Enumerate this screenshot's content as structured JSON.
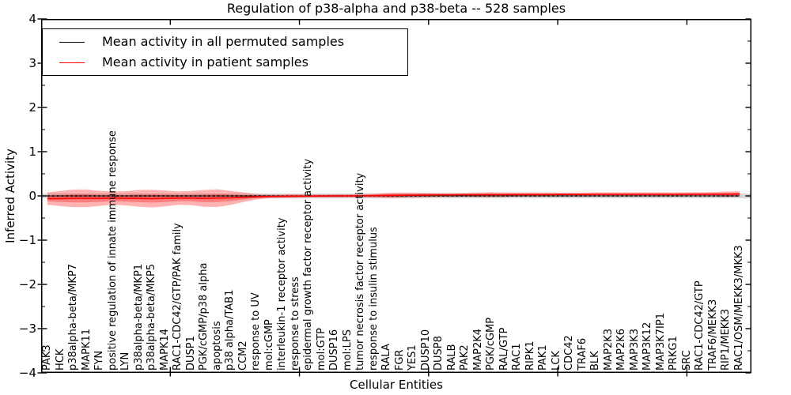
{
  "title": "Regulation of p38-alpha and p38-beta -- 528 samples",
  "legend": {
    "entries": [
      {
        "label": "Mean activity in all permuted samples",
        "color": "#000000"
      },
      {
        "label": "Mean activity in patient samples",
        "color": "#ff0000"
      }
    ]
  },
  "colors": {
    "patient_line": "#ff0000",
    "patient_band_fill": "rgba(255,0,0,0.30)",
    "permuted_band_fill": "rgba(110,110,110,0.28)",
    "axis": "#000000"
  },
  "chart_data": {
    "type": "area",
    "title": "Regulation of p38-alpha and p38-beta -- 528 samples",
    "xlabel": "Cellular Entities",
    "ylabel": "Inferred Activity",
    "ylim": [
      -4,
      4
    ],
    "y_major_ticks": [
      4,
      3,
      2,
      1,
      0,
      -1,
      -2,
      -3,
      -4
    ],
    "y_tick_labels": [
      "4",
      "3",
      "2",
      "1",
      "0",
      "−1",
      "−2",
      "−3",
      "−4"
    ],
    "y_minor_tick_step": 0.5,
    "xlim_data": [
      0,
      55
    ],
    "x_major_ticks_data": [
      10,
      20,
      30,
      40,
      50
    ],
    "grid": false,
    "legend_position": "upper left",
    "categories": [
      "PAK3",
      "HCK",
      "p38alpha-beta/MKP7",
      "MAPK11",
      "FYN",
      "positive regulation of innate immune response",
      "LYN",
      "p38alpha-beta/MKP1",
      "p38alpha-beta/MKP5",
      "MAPK14",
      "RAC1-CDC42/GTP/PAK family",
      "DUSP1",
      "PGK/cGMP/p38 alpha",
      "apoptosis",
      "p38 alpha/TAB1",
      "CCM2",
      "response to UV",
      "mol:cGMP",
      "interleukin-1 receptor activity",
      "response to stress",
      "epidermal growth factor receptor activity",
      "mol:GTP",
      "DUSP16",
      "mol:LPS",
      "tumor necrosis factor receptor activity",
      "response to insulin stimulus",
      "RALA",
      "FGR",
      "YES1",
      "DUSP10",
      "DUSP8",
      "RALB",
      "PAK2",
      "MAP2K4",
      "PGK/cGMP",
      "RAL/GTP",
      "RAC1",
      "RIPK1",
      "PAK1",
      "LCK",
      "CDC42",
      "TRAF6",
      "BLK",
      "MAP2K3",
      "MAP2K6",
      "MAP3K3",
      "MAP3K12",
      "MAP3K7IP1",
      "PRKG1",
      "SRC",
      "RAC1-CDC42/GTP",
      "TRAF6/MEKK3",
      "RIP1/MEKK3",
      "RAC1/OSM/MEKK3/MKK3"
    ],
    "series": [
      {
        "name": "Mean activity in all permuted samples",
        "color": "#000000",
        "style": "solid, overlaid by dashed zero reference line",
        "constant_value": 0.0
      },
      {
        "name": "Mean activity in patient samples",
        "color": "#ff0000",
        "values": [
          -0.06,
          -0.06,
          -0.055,
          -0.055,
          -0.055,
          -0.05,
          -0.055,
          -0.055,
          -0.06,
          -0.055,
          -0.05,
          -0.05,
          -0.055,
          -0.05,
          -0.045,
          -0.03,
          -0.02,
          -0.012,
          -0.008,
          -0.005,
          -0.003,
          -0.002,
          0,
          0,
          0.002,
          0.005,
          0.01,
          0.015,
          0.018,
          0.02,
          0.022,
          0.022,
          0.025,
          0.025,
          0.028,
          0.028,
          0.03,
          0.03,
          0.03,
          0.032,
          0.032,
          0.032,
          0.035,
          0.035,
          0.035,
          0.035,
          0.035,
          0.035,
          0.035,
          0.038,
          0.038,
          0.04,
          0.04,
          0.042
        ]
      }
    ],
    "patient_band_outer_halfwidth": [
      0.14,
      0.17,
      0.2,
      0.2,
      0.17,
      0.15,
      0.16,
      0.19,
      0.2,
      0.18,
      0.15,
      0.16,
      0.19,
      0.2,
      0.16,
      0.11,
      0.06,
      0.04,
      0.04,
      0.04,
      0.035,
      0.035,
      0.035,
      0.035,
      0.035,
      0.045,
      0.06,
      0.06,
      0.055,
      0.05,
      0.045,
      0.045,
      0.045,
      0.05,
      0.055,
      0.05,
      0.045,
      0.045,
      0.045,
      0.045,
      0.045,
      0.045,
      0.045,
      0.045,
      0.045,
      0.045,
      0.045,
      0.045,
      0.045,
      0.045,
      0.045,
      0.05,
      0.06,
      0.06
    ],
    "patient_band_inner_fraction": 0.45,
    "permuted_band_halfwidth": 0.055,
    "zero_line": {
      "value": 0,
      "style": "dashed",
      "color": "#000000"
    }
  }
}
